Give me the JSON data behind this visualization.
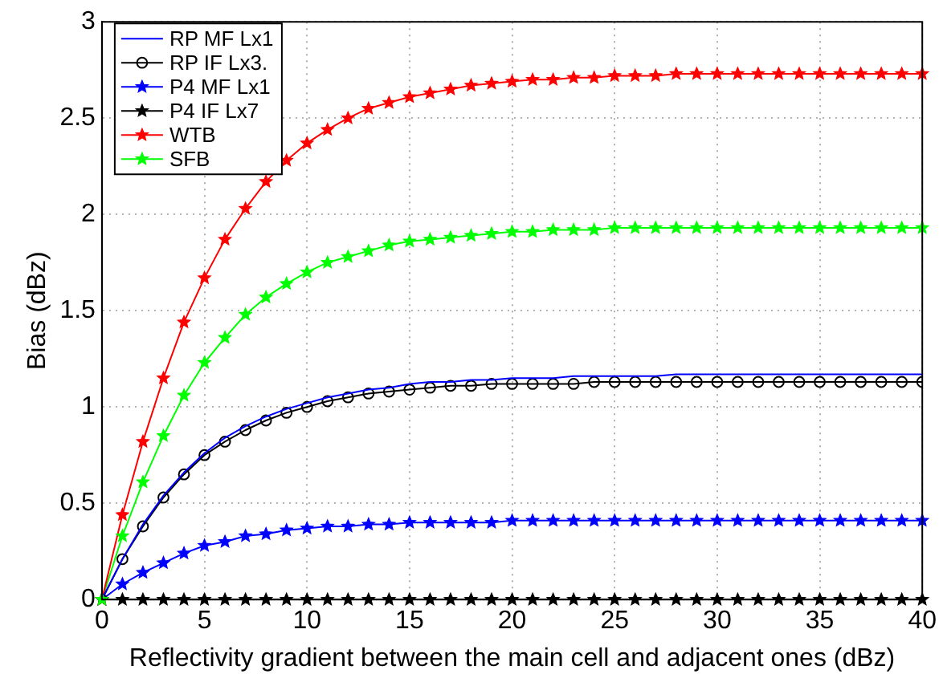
{
  "chart_data": {
    "type": "line",
    "xlabel": "Reflectivity gradient between the main cell and adjacent ones (dBz)",
    "ylabel": "Bias (dBz)",
    "x": [
      0,
      1,
      2,
      3,
      4,
      5,
      6,
      7,
      8,
      9,
      10,
      11,
      12,
      13,
      14,
      15,
      16,
      17,
      18,
      19,
      20,
      21,
      22,
      23,
      24,
      25,
      26,
      27,
      28,
      29,
      30,
      31,
      32,
      33,
      34,
      35,
      36,
      37,
      38,
      39,
      40
    ],
    "series": [
      {
        "name": "RP MF Lx1",
        "color": "#0000ff",
        "marker": "none",
        "values": [
          0,
          0.21,
          0.39,
          0.54,
          0.66,
          0.76,
          0.84,
          0.9,
          0.95,
          0.99,
          1.02,
          1.05,
          1.07,
          1.09,
          1.1,
          1.12,
          1.13,
          1.13,
          1.14,
          1.14,
          1.15,
          1.15,
          1.15,
          1.16,
          1.16,
          1.16,
          1.16,
          1.16,
          1.17,
          1.17,
          1.17,
          1.17,
          1.17,
          1.17,
          1.17,
          1.17,
          1.17,
          1.17,
          1.17,
          1.17,
          1.17
        ]
      },
      {
        "name": "RP IF Lx3.",
        "color": "#000000",
        "marker": "circle",
        "values": [
          0,
          0.21,
          0.38,
          0.53,
          0.65,
          0.75,
          0.82,
          0.88,
          0.93,
          0.97,
          1.0,
          1.03,
          1.05,
          1.07,
          1.08,
          1.09,
          1.1,
          1.11,
          1.11,
          1.12,
          1.12,
          1.12,
          1.12,
          1.12,
          1.13,
          1.13,
          1.13,
          1.13,
          1.13,
          1.13,
          1.13,
          1.13,
          1.13,
          1.13,
          1.13,
          1.13,
          1.13,
          1.13,
          1.13,
          1.13,
          1.13
        ]
      },
      {
        "name": "P4 MF Lx1",
        "color": "#0000ff",
        "marker": "star",
        "values": [
          0,
          0.08,
          0.14,
          0.19,
          0.24,
          0.28,
          0.3,
          0.33,
          0.34,
          0.36,
          0.37,
          0.38,
          0.38,
          0.39,
          0.39,
          0.4,
          0.4,
          0.4,
          0.4,
          0.4,
          0.41,
          0.41,
          0.41,
          0.41,
          0.41,
          0.41,
          0.41,
          0.41,
          0.41,
          0.41,
          0.41,
          0.41,
          0.41,
          0.41,
          0.41,
          0.41,
          0.41,
          0.41,
          0.41,
          0.41,
          0.41
        ]
      },
      {
        "name": "P4 IF Lx7",
        "color": "#000000",
        "marker": "star",
        "values": [
          0,
          0,
          0,
          0,
          0,
          0,
          0,
          0,
          0,
          0,
          0,
          0,
          0,
          0,
          0,
          0,
          0,
          0,
          0,
          0,
          0,
          0,
          0,
          0,
          0,
          0,
          0,
          0,
          0,
          0,
          0,
          0,
          0,
          0,
          0,
          0,
          0,
          0,
          0,
          0,
          0
        ]
      },
      {
        "name": "WTB",
        "color": "#ff0000",
        "marker": "star",
        "values": [
          0,
          0.44,
          0.82,
          1.15,
          1.44,
          1.67,
          1.87,
          2.03,
          2.17,
          2.28,
          2.37,
          2.44,
          2.5,
          2.55,
          2.58,
          2.61,
          2.63,
          2.65,
          2.67,
          2.68,
          2.69,
          2.7,
          2.7,
          2.71,
          2.71,
          2.72,
          2.72,
          2.72,
          2.73,
          2.73,
          2.73,
          2.73,
          2.73,
          2.73,
          2.73,
          2.73,
          2.73,
          2.73,
          2.73,
          2.73,
          2.73
        ]
      },
      {
        "name": "SFB",
        "color": "#00ff00",
        "marker": "star",
        "values": [
          0,
          0.33,
          0.61,
          0.85,
          1.06,
          1.23,
          1.36,
          1.48,
          1.57,
          1.64,
          1.7,
          1.75,
          1.78,
          1.81,
          1.84,
          1.86,
          1.87,
          1.88,
          1.89,
          1.9,
          1.91,
          1.91,
          1.92,
          1.92,
          1.92,
          1.93,
          1.93,
          1.93,
          1.93,
          1.93,
          1.93,
          1.93,
          1.93,
          1.93,
          1.93,
          1.93,
          1.93,
          1.93,
          1.93,
          1.93,
          1.93
        ]
      }
    ],
    "xlim": [
      0,
      40
    ],
    "xticks": [
      0,
      5,
      10,
      15,
      20,
      25,
      30,
      35,
      40
    ],
    "ylim": [
      0,
      3
    ],
    "yticks": [
      0,
      0.5,
      1,
      1.5,
      2,
      2.5,
      3
    ],
    "grid": true,
    "legend": "top left",
    "line_style": "solid"
  }
}
